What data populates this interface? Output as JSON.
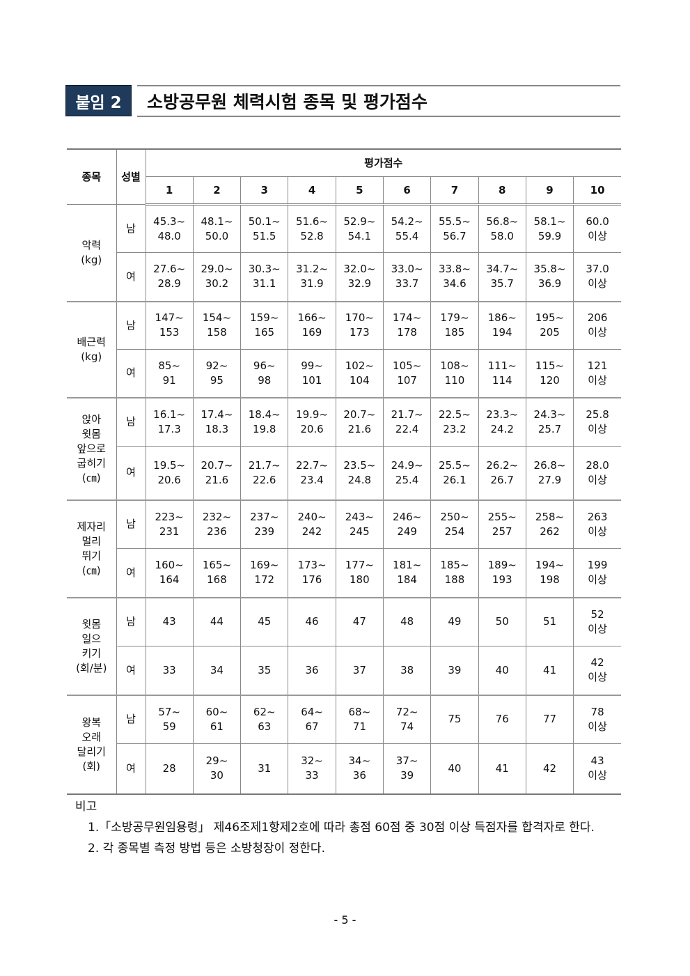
{
  "header": {
    "badge": "붙임 2",
    "title": "소방공무원 체력시험 종목 및 평가점수"
  },
  "table": {
    "col_item": "종목",
    "col_sex": "성별",
    "col_score": "평가점수",
    "scores": [
      "1",
      "2",
      "3",
      "4",
      "5",
      "6",
      "7",
      "8",
      "9",
      "10"
    ],
    "groups": [
      {
        "item": "악력\n(kg)",
        "rows": [
          {
            "sex": "남",
            "values": [
              "45.3~\n48.0",
              "48.1~\n50.0",
              "50.1~\n51.5",
              "51.6~\n52.8",
              "52.9~\n54.1",
              "54.2~\n55.4",
              "55.5~\n56.7",
              "56.8~\n58.0",
              "58.1~\n59.9",
              "60.0\n이상"
            ]
          },
          {
            "sex": "여",
            "values": [
              "27.6~\n28.9",
              "29.0~\n30.2",
              "30.3~\n31.1",
              "31.2~\n31.9",
              "32.0~\n32.9",
              "33.0~\n33.7",
              "33.8~\n34.6",
              "34.7~\n35.7",
              "35.8~\n36.9",
              "37.0\n이상"
            ]
          }
        ]
      },
      {
        "item": "배근력\n(kg)",
        "rows": [
          {
            "sex": "남",
            "values": [
              "147~\n153",
              "154~\n158",
              "159~\n165",
              "166~\n169",
              "170~\n173",
              "174~\n178",
              "179~\n185",
              "186~\n194",
              "195~\n205",
              "206\n이상"
            ]
          },
          {
            "sex": "여",
            "values": [
              "85~\n91",
              "92~\n95",
              "96~\n98",
              "99~\n101",
              "102~\n104",
              "105~\n107",
              "108~\n110",
              "111~\n114",
              "115~\n120",
              "121\n이상"
            ]
          }
        ]
      },
      {
        "item": "앉아\n윗몸\n앞으로\n굽히기\n(㎝)",
        "rows": [
          {
            "sex": "남",
            "values": [
              "16.1~\n17.3",
              "17.4~\n18.3",
              "18.4~\n19.8",
              "19.9~\n20.6",
              "20.7~\n21.6",
              "21.7~\n22.4",
              "22.5~\n23.2",
              "23.3~\n24.2",
              "24.3~\n25.7",
              "25.8\n이상"
            ]
          },
          {
            "sex": "여",
            "values": [
              "19.5~\n20.6",
              "20.7~\n21.6",
              "21.7~\n22.6",
              "22.7~\n23.4",
              "23.5~\n24.8",
              "24.9~\n25.4",
              "25.5~\n26.1",
              "26.2~\n26.7",
              "26.8~\n27.9",
              "28.0\n이상"
            ]
          }
        ]
      },
      {
        "item": "제자리\n멀리\n뛰기\n(㎝)",
        "rows": [
          {
            "sex": "남",
            "values": [
              "223~\n231",
              "232~\n236",
              "237~\n239",
              "240~\n242",
              "243~\n245",
              "246~\n249",
              "250~\n254",
              "255~\n257",
              "258~\n262",
              "263\n이상"
            ]
          },
          {
            "sex": "여",
            "values": [
              "160~\n164",
              "165~\n168",
              "169~\n172",
              "173~\n176",
              "177~\n180",
              "181~\n184",
              "185~\n188",
              "189~\n193",
              "194~\n198",
              "199\n이상"
            ]
          }
        ]
      },
      {
        "item": "윗몸\n일으\n키기\n(회/분)",
        "rows": [
          {
            "sex": "남",
            "values": [
              "43",
              "44",
              "45",
              "46",
              "47",
              "48",
              "49",
              "50",
              "51",
              "52\n이상"
            ]
          },
          {
            "sex": "여",
            "values": [
              "33",
              "34",
              "35",
              "36",
              "37",
              "38",
              "39",
              "40",
              "41",
              "42\n이상"
            ]
          }
        ]
      },
      {
        "item": "왕복\n오래\n달리기\n(회)",
        "rows": [
          {
            "sex": "남",
            "values": [
              "57~\n59",
              "60~\n61",
              "62~\n63",
              "64~\n67",
              "68~\n71",
              "72~\n74",
              "75",
              "76",
              "77",
              "78\n이상"
            ]
          },
          {
            "sex": "여",
            "values": [
              "28",
              "29~\n30",
              "31",
              "32~\n33",
              "34~\n36",
              "37~\n39",
              "40",
              "41",
              "42",
              "43\n이상"
            ]
          }
        ]
      }
    ]
  },
  "notes": {
    "heading": "비고",
    "items": [
      "1.「소방공무원임용령」 제46조제1항제2호에 따라 총점 60점 중 30점 이상 득점자를 합격자로 한다.",
      "2. 각 종목별 측정 방법 등은 소방청장이 정한다."
    ]
  },
  "page_number": "- 5 -"
}
